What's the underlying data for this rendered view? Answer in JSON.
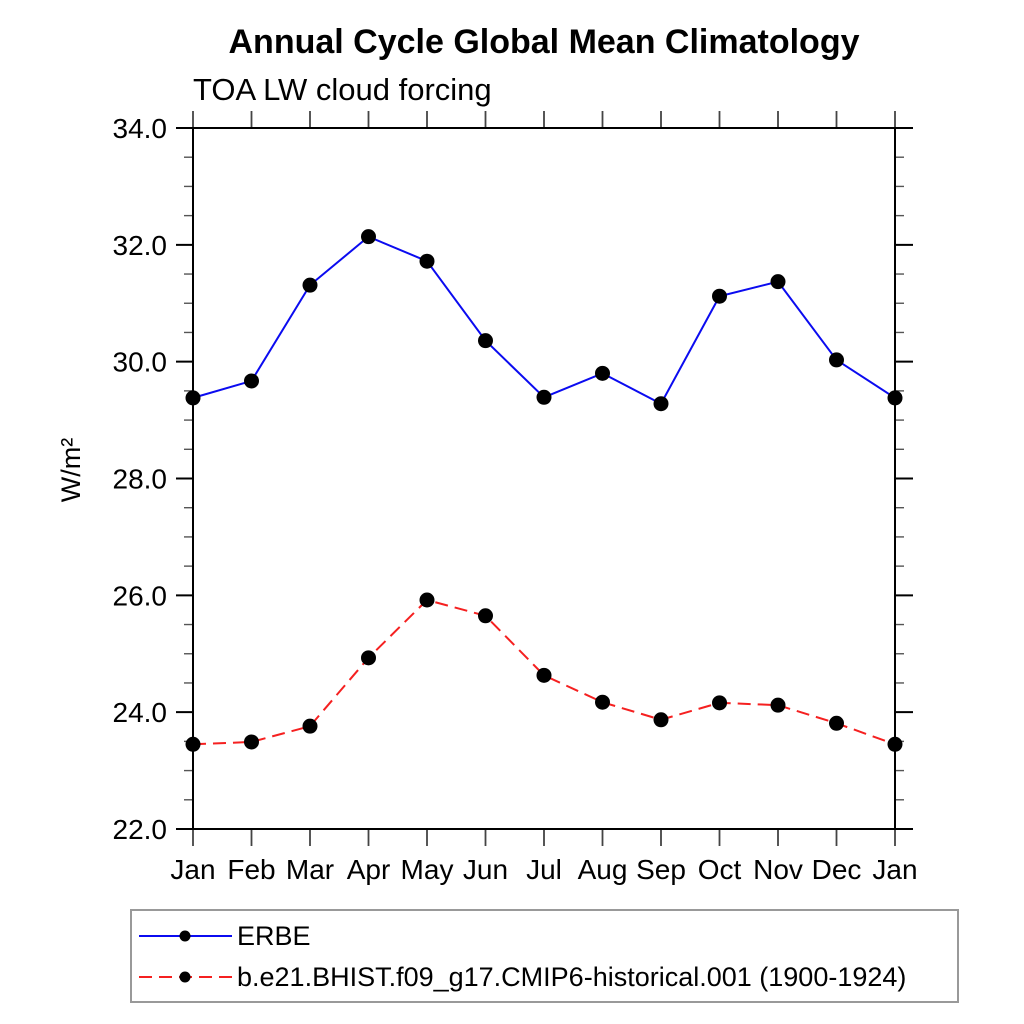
{
  "chart": {
    "title": "Annual Cycle Global Mean Climatology",
    "subtitle": "TOA LW cloud forcing",
    "ylabel": "W/m²"
  },
  "chart_data": {
    "type": "line",
    "title": "Annual Cycle Global Mean Climatology",
    "subtitle": "TOA LW cloud forcing",
    "xlabel": "",
    "ylabel": "W/m²",
    "categories": [
      "Jan",
      "Feb",
      "Mar",
      "Apr",
      "May",
      "Jun",
      "Jul",
      "Aug",
      "Sep",
      "Oct",
      "Nov",
      "Dec",
      "Jan"
    ],
    "ylim": [
      22.0,
      34.0
    ],
    "ytick_major_interval": 2.0,
    "ytick_minor_interval": 0.5,
    "ytick_labels": [
      "22.0",
      "24.0",
      "26.0",
      "28.0",
      "30.0",
      "32.0",
      "34.0"
    ],
    "grid": false,
    "legend_position": "bottom-left-box",
    "series": [
      {
        "name": "ERBE",
        "color": "#0b0bf0",
        "line_style": "solid",
        "marker": "circle",
        "marker_color": "#000000",
        "values": [
          29.38,
          29.67,
          31.31,
          32.14,
          31.72,
          30.36,
          29.39,
          29.8,
          29.28,
          31.12,
          31.37,
          30.03,
          29.38
        ]
      },
      {
        "name": "b.e21.BHIST.f09_g17.CMIP6-historical.001 (1900-1924)",
        "color": "#f52020",
        "line_style": "dashed",
        "marker": "circle",
        "marker_color": "#000000",
        "values": [
          23.45,
          23.49,
          23.76,
          24.93,
          25.92,
          25.65,
          24.63,
          24.17,
          23.87,
          24.16,
          24.12,
          23.81,
          23.45
        ]
      }
    ]
  },
  "colors": {
    "frame": "#000000",
    "minor_tick": "#555555",
    "month_tick": "#444444",
    "legend_border": "#999999"
  }
}
